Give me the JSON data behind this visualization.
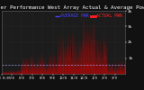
{
  "title": "Solar PV/Inverter Performance West Array Actual & Average Power Output",
  "bg_color": "#111111",
  "plot_bg_color": "#1c1c1c",
  "grid_color": "#444444",
  "actual_color": "#dd0000",
  "avg_color": "#ffffff",
  "avg_line_color": "#aaaaff",
  "legend_avg_color": "#4444ff",
  "legend_actual_color": "#ff2222",
  "legend_avg": "AVERAGE PWR",
  "legend_actual": "ACTUAL PWR",
  "ylim": [
    0,
    4000
  ],
  "ytick_labels": [
    "1k",
    "2k",
    "3k",
    "4k"
  ],
  "ytick_values": [
    1000,
    2000,
    3000,
    4000
  ],
  "avg_value": 600,
  "title_fontsize": 4.2,
  "axis_fontsize": 3.2,
  "legend_fontsize": 3.5
}
